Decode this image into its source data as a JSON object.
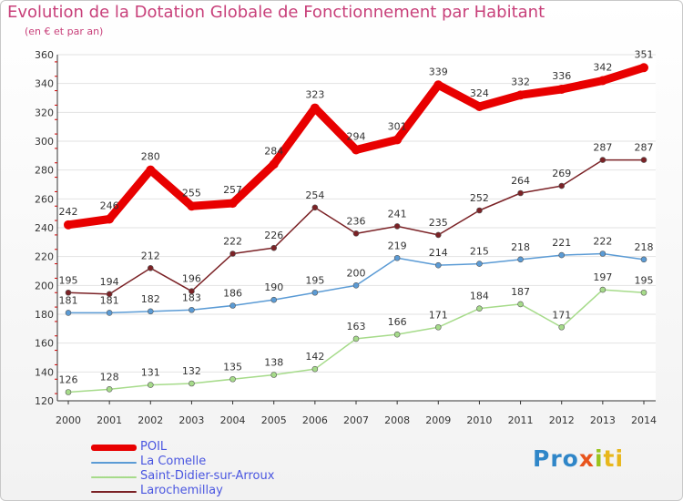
{
  "chart_data": {
    "type": "line",
    "title": "Evolution de la Dotation Globale de Fonctionnement par Habitant",
    "subtitle": "(en € et par an)",
    "xlabel": "",
    "ylabel": "",
    "ylim": [
      120,
      360
    ],
    "yticks": [
      120,
      140,
      160,
      180,
      200,
      220,
      240,
      260,
      280,
      300,
      320,
      340,
      360
    ],
    "grid": true,
    "legend_position": "bottom-left",
    "categories": [
      "2000",
      "2001",
      "2002",
      "2003",
      "2004",
      "2005",
      "2006",
      "2007",
      "2008",
      "2009",
      "2010",
      "2011",
      "2012",
      "2013",
      "2014"
    ],
    "series": [
      {
        "name": "POIL",
        "color": "#e80000",
        "values": [
          242,
          246,
          280,
          255,
          257,
          284,
          323,
          294,
          301,
          339,
          324,
          332,
          336,
          342,
          351
        ]
      },
      {
        "name": "La Comelle",
        "color": "#5b9bd5",
        "values": [
          181,
          181,
          182,
          183,
          186,
          190,
          195,
          200,
          219,
          214,
          215,
          218,
          221,
          222,
          218
        ]
      },
      {
        "name": "Saint-Didier-sur-Arroux",
        "color": "#a6db8a",
        "values": [
          126,
          128,
          131,
          132,
          135,
          138,
          142,
          163,
          166,
          171,
          184,
          187,
          171,
          197,
          195
        ]
      },
      {
        "name": "Larochemillay",
        "color": "#7b2226",
        "values": [
          195,
          194,
          212,
          196,
          222,
          226,
          254,
          236,
          241,
          235,
          252,
          264,
          269,
          287,
          287
        ]
      }
    ]
  },
  "logo": {
    "text": "Proxiti"
  }
}
